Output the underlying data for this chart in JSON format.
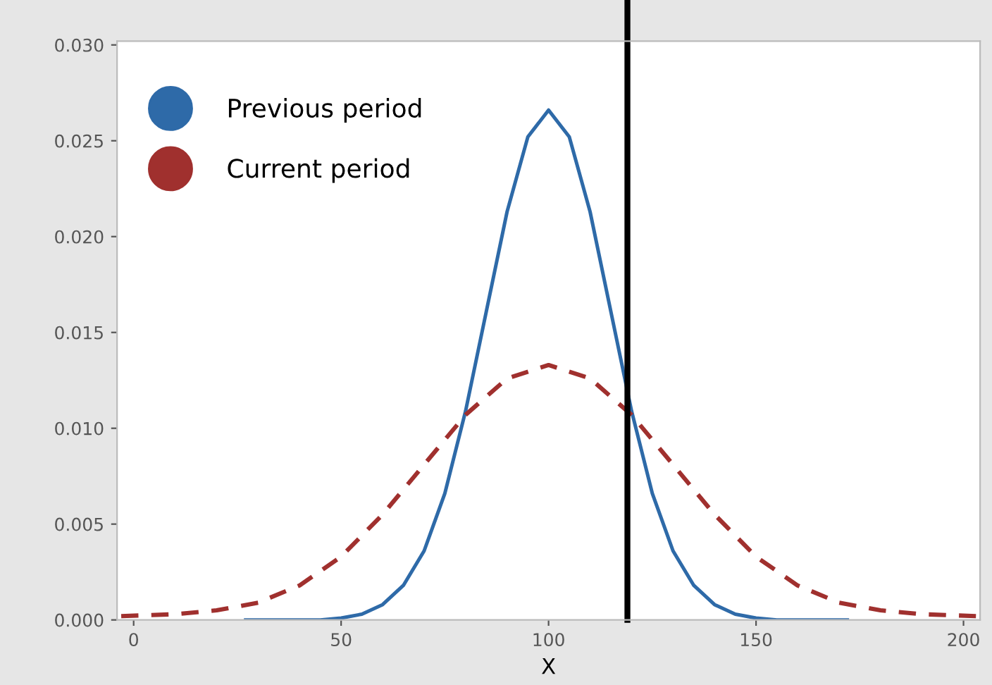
{
  "chart_data": {
    "type": "line",
    "xlabel": "X",
    "xlim": [
      -4,
      204
    ],
    "ylim": [
      0,
      0.0302
    ],
    "xticks": [
      0,
      50,
      100,
      150,
      200
    ],
    "yticks": [
      {
        "value": 0,
        "label": "0.000"
      },
      {
        "value": 0.005,
        "label": "0.005"
      },
      {
        "value": 0.01,
        "label": "0.010"
      },
      {
        "value": 0.015,
        "label": "0.015"
      },
      {
        "value": 0.02,
        "label": "0.020"
      },
      {
        "value": 0.025,
        "label": "0.025"
      },
      {
        "value": 0.03,
        "label": "0.030"
      }
    ],
    "series": [
      {
        "name": "Previous period",
        "color": "#2e6aa8",
        "line_style": "solid",
        "x": [
          27,
          35,
          45,
          50,
          55,
          60,
          65,
          70,
          75,
          80,
          85,
          90,
          95,
          100,
          105,
          110,
          115,
          120,
          125,
          130,
          135,
          140,
          145,
          150,
          155,
          165,
          172
        ],
        "values": [
          0,
          0,
          0,
          0.0001,
          0.0003,
          0.0008,
          0.0018,
          0.0036,
          0.0066,
          0.0109,
          0.0161,
          0.0213,
          0.0252,
          0.0266,
          0.0252,
          0.0213,
          0.0161,
          0.0109,
          0.0066,
          0.0036,
          0.0018,
          0.0008,
          0.0003,
          0.0001,
          0,
          0,
          0
        ]
      },
      {
        "name": "Current period",
        "color": "#a0302e",
        "line_style": "dashed",
        "x": [
          -3,
          10,
          20,
          30,
          40,
          50,
          60,
          70,
          80,
          90,
          100,
          110,
          120,
          130,
          140,
          150,
          160,
          170,
          180,
          190,
          203
        ],
        "values": [
          0.0002,
          0.0003,
          0.0005,
          0.0009,
          0.0018,
          0.0033,
          0.0055,
          0.0081,
          0.0107,
          0.0126,
          0.0133,
          0.0126,
          0.0107,
          0.0081,
          0.0055,
          0.0033,
          0.0018,
          0.0009,
          0.0005,
          0.0003,
          0.0002
        ]
      }
    ],
    "ref_lines": [
      {
        "axis": "x",
        "value": 119,
        "color": "#000000"
      }
    ],
    "legend": "top left",
    "grid": false,
    "marker": "none"
  }
}
